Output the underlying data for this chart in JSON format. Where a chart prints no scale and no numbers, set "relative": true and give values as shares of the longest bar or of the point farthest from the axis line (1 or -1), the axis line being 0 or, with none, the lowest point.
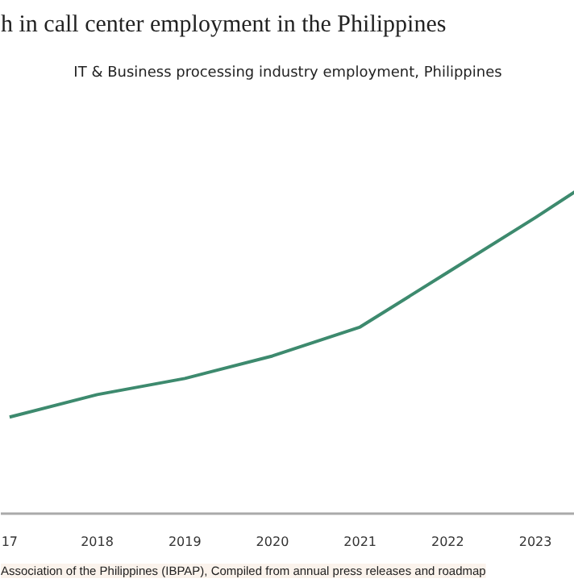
{
  "chart_data": {
    "type": "line",
    "relative": true,
    "title": "h in call center employment in the Philippines",
    "subtitle": "IT & Business processing industry employment, Philippines",
    "annotations": [
      "Association of the Philippines (IBPAP), Compiled from annual press releases and roadmap"
    ],
    "x": [
      2017,
      2018,
      2019,
      2020,
      2021,
      2022,
      2023,
      2023.45
    ],
    "xlim": [
      2016.9,
      2023.45
    ],
    "xticks": [
      {
        "value": 2017,
        "label": "17"
      },
      2018,
      2019,
      2020,
      2021,
      2022,
      2023
    ],
    "series": [
      {
        "color": "#3d8a6e",
        "values": [
          0.3,
          0.37,
          0.42,
          0.49,
          0.58,
          0.75,
          0.92,
          1.0
        ]
      }
    ],
    "grid": false,
    "marker": "none",
    "line_style": "solid"
  }
}
